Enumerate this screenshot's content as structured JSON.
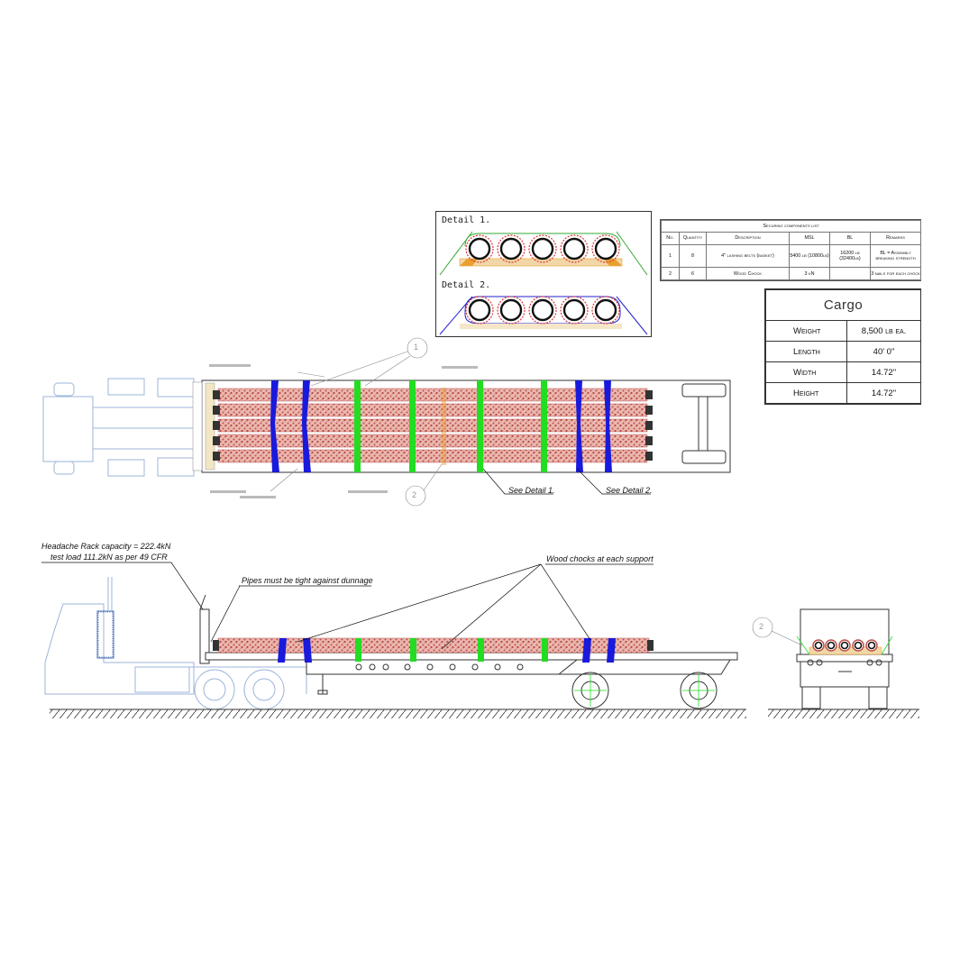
{
  "securing_table": {
    "title": "Securing components list",
    "headers": [
      "No.",
      "Quantity",
      "Description",
      "MSL",
      "BL",
      "Remarks"
    ],
    "rows": [
      [
        "1",
        "8",
        "4\" lashing belts (basket)",
        "5400 lb (10800lb)",
        "16200 lb (32400lb)",
        "BL = Assembly breaking strength"
      ],
      [
        "2",
        "6",
        "Wood Chock",
        "3 kN",
        "",
        "3 nails for each chock"
      ]
    ]
  },
  "cargo_table": {
    "title": "Cargo",
    "rows": [
      {
        "label": "Weight",
        "value": "8,500 lb ea."
      },
      {
        "label": "Length",
        "value": "40' 0\""
      },
      {
        "label": "Width",
        "value": "14.72\""
      },
      {
        "label": "Height",
        "value": "14.72\""
      }
    ]
  },
  "details": {
    "detail1": "Detail 1.",
    "detail2": "Detail 2."
  },
  "callouts": {
    "see_detail_1": "See Detail 1.",
    "see_detail_2": "See Detail 2.",
    "headache_rack_line1": "Headache Rack capacity = 222.4kN",
    "headache_rack_line2": "test load 111.2kN as per 49 CFR",
    "pipes_tight": "Pipes must be tight against dunnage",
    "wood_chocks": "Wood chocks at each support",
    "marker_1": "1",
    "marker_2": "2"
  },
  "colors": {
    "pipe": "#c0504a",
    "strap_green": "#22dd22",
    "strap_blue": "#1a1adc",
    "dunnage": "#e8a030",
    "truck_line": "#9db4d8",
    "trailer_line": "#333333"
  }
}
